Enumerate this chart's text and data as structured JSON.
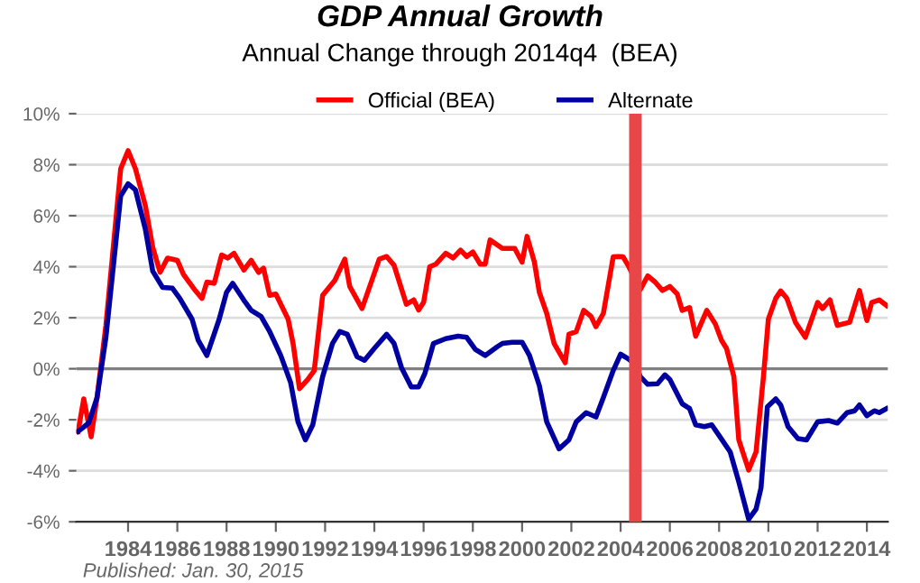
{
  "chart_data": {
    "type": "line",
    "title": "GDP Annual Growth",
    "subtitle": "Annual Change through 2014q4  (BEA)",
    "annotations": [
      "Published: Jan. 30, 2015"
    ],
    "series": [
      {
        "name": "Official (BEA)",
        "color": "#ff0000",
        "x": [
          1981.97,
          1982.2,
          1982.5,
          1982.74,
          1983.1,
          1983.7,
          1984.0,
          1984.3,
          1984.7,
          1985.0,
          1985.3,
          1985.6,
          1986.0,
          1986.25,
          1986.7,
          1987.0,
          1987.2,
          1987.5,
          1987.8,
          1988.05,
          1988.3,
          1988.7,
          1989.0,
          1989.3,
          1989.5,
          1989.75,
          1990.0,
          1990.5,
          1990.7,
          1990.96,
          1991.3,
          1991.56,
          1991.9,
          1992.4,
          1992.8,
          1993.0,
          1993.5,
          1994.2,
          1994.5,
          1994.8,
          1995.3,
          1995.6,
          1995.8,
          1996.0,
          1996.25,
          1996.5,
          1996.9,
          1997.2,
          1997.5,
          1997.75,
          1998.0,
          1998.3,
          1998.5,
          1998.7,
          1999.2,
          1999.7,
          2000.0,
          2000.2,
          2000.5,
          2000.7,
          2001.0,
          2001.3,
          2001.75,
          2001.9,
          2002.2,
          2002.5,
          2002.8,
          2003.0,
          2003.3,
          2003.7,
          2003.9,
          2004.1,
          2004.3,
          2004.8,
          2005.1,
          2005.4,
          2005.7,
          2006.0,
          2006.3,
          2006.5,
          2006.8,
          2007.05,
          2007.5,
          2007.85,
          2008.1,
          2008.3,
          2008.6,
          2008.8,
          2009.2,
          2009.5,
          2009.8,
          2010.0,
          2010.3,
          2010.5,
          2010.75,
          2011.1,
          2011.5,
          2012.0,
          2012.2,
          2012.5,
          2012.8,
          2013.3,
          2013.7,
          2014.0,
          2014.2,
          2014.5,
          2014.8
        ],
        "values": [
          -2.46,
          -1.18,
          -2.67,
          -1.13,
          1.7,
          7.84,
          8.55,
          7.84,
          6.4,
          4.77,
          3.78,
          4.34,
          4.25,
          3.7,
          3.1,
          2.76,
          3.4,
          3.35,
          4.46,
          4.34,
          4.53,
          3.87,
          4.25,
          3.78,
          3.94,
          2.88,
          2.93,
          1.94,
          0.99,
          -0.78,
          -0.42,
          -0.07,
          2.88,
          3.47,
          4.3,
          3.23,
          2.36,
          4.3,
          4.4,
          4.06,
          2.53,
          2.7,
          2.3,
          2.6,
          4.0,
          4.1,
          4.53,
          4.34,
          4.65,
          4.4,
          4.58,
          4.1,
          4.1,
          5.05,
          4.72,
          4.72,
          4.18,
          5.19,
          4.18,
          3.0,
          2.17,
          0.99,
          0.24,
          1.35,
          1.46,
          2.29,
          2.05,
          1.65,
          2.17,
          4.39,
          4.4,
          4.39,
          4.06,
          3.1,
          3.64,
          3.4,
          3.07,
          3.23,
          2.93,
          2.29,
          2.4,
          1.28,
          2.29,
          1.75,
          1.11,
          0.8,
          -0.31,
          -2.79,
          -3.97,
          -3.26,
          -0.31,
          1.94,
          2.76,
          3.05,
          2.76,
          1.82,
          1.23,
          2.6,
          2.36,
          2.7,
          1.7,
          1.82,
          3.07,
          1.89,
          2.6,
          2.7,
          2.48
        ]
      },
      {
        "name": "Alternate",
        "color": "#0000a0",
        "x": [
          1981.97,
          1982.4,
          1982.74,
          1983.1,
          1983.7,
          1984.0,
          1984.3,
          1984.7,
          1985.0,
          1985.4,
          1985.8,
          1986.1,
          1986.6,
          1986.85,
          1987.2,
          1987.7,
          1988.0,
          1988.25,
          1988.7,
          1989.0,
          1989.4,
          1989.75,
          1990.2,
          1990.6,
          1990.9,
          1991.2,
          1991.5,
          1991.9,
          1992.3,
          1992.6,
          1992.9,
          1993.3,
          1993.6,
          1994.0,
          1994.5,
          1994.8,
          1995.1,
          1995.5,
          1995.8,
          1996.05,
          1996.4,
          1996.9,
          1997.4,
          1997.75,
          1998.1,
          1998.5,
          1999.0,
          1999.2,
          1999.6,
          2000.0,
          2000.3,
          2000.7,
          2001.0,
          2001.5,
          2001.9,
          2002.2,
          2002.6,
          2003.0,
          2003.3,
          2003.7,
          2004.0,
          2004.3,
          2004.6,
          2004.8,
          2005.1,
          2005.5,
          2005.8,
          2006.0,
          2006.5,
          2006.8,
          2007.05,
          2007.4,
          2007.7,
          2008.0,
          2008.45,
          2008.8,
          2009.2,
          2009.5,
          2009.7,
          2009.96,
          2010.3,
          2010.5,
          2010.8,
          2011.2,
          2011.55,
          2012.0,
          2012.45,
          2012.8,
          2013.2,
          2013.5,
          2013.7,
          2014.0,
          2014.3,
          2014.5,
          2014.8
        ],
        "values": [
          -2.46,
          -2.13,
          -1.13,
          1.23,
          6.78,
          7.25,
          7.01,
          5.48,
          3.83,
          3.19,
          3.16,
          2.76,
          1.94,
          1.11,
          0.52,
          1.94,
          3.0,
          3.35,
          2.69,
          2.29,
          2.05,
          1.46,
          0.52,
          -0.54,
          -2.08,
          -2.79,
          -2.2,
          -0.31,
          0.99,
          1.46,
          1.35,
          0.47,
          0.33,
          0.8,
          1.35,
          0.99,
          0.05,
          -0.71,
          -0.71,
          -0.19,
          0.99,
          1.18,
          1.28,
          1.23,
          0.76,
          0.52,
          0.87,
          0.99,
          1.04,
          1.04,
          0.52,
          -0.66,
          -2.08,
          -3.14,
          -2.79,
          -2.08,
          -1.72,
          -1.89,
          -1.13,
          -0.07,
          0.57,
          0.4,
          0.17,
          -0.31,
          -0.61,
          -0.59,
          -0.24,
          -0.42,
          -1.37,
          -1.56,
          -2.2,
          -2.27,
          -2.2,
          -2.62,
          -3.26,
          -4.44,
          -5.9,
          -5.5,
          -4.68,
          -1.49,
          -1.18,
          -1.42,
          -2.27,
          -2.74,
          -2.79,
          -2.08,
          -2.03,
          -2.13,
          -1.72,
          -1.65,
          -1.42,
          -1.84,
          -1.65,
          -1.72,
          -1.56
        ]
      }
    ],
    "xlim": [
      1981.9,
      2014.85
    ],
    "xticks": [
      1984,
      1986,
      1988,
      1990,
      1992,
      1994,
      1996,
      1998,
      2000,
      2002,
      2004,
      2006,
      2008,
      2010,
      2012,
      2014
    ],
    "ylim": [
      -6,
      10
    ],
    "yticks": [
      {
        "value": -6,
        "label": "-6%"
      },
      {
        "value": -4,
        "label": "-4%"
      },
      {
        "value": -2,
        "label": "-2%"
      },
      {
        "value": 0,
        "label": "0%"
      },
      {
        "value": 2,
        "label": "2%"
      },
      {
        "value": 4,
        "label": "4%"
      },
      {
        "value": 6,
        "label": "6%"
      },
      {
        "value": 8,
        "label": "8%"
      },
      {
        "value": 10,
        "label": "10%"
      }
    ],
    "ref_lines": [
      {
        "axis": "y",
        "value": 0,
        "color": "#808080",
        "line_style": "solid"
      },
      {
        "axis": "x",
        "value": 2004.6,
        "color": "#e8474a",
        "line_style": "solid"
      }
    ],
    "grid": "y",
    "legend": "top",
    "marker": "none",
    "line_style": "solid"
  }
}
